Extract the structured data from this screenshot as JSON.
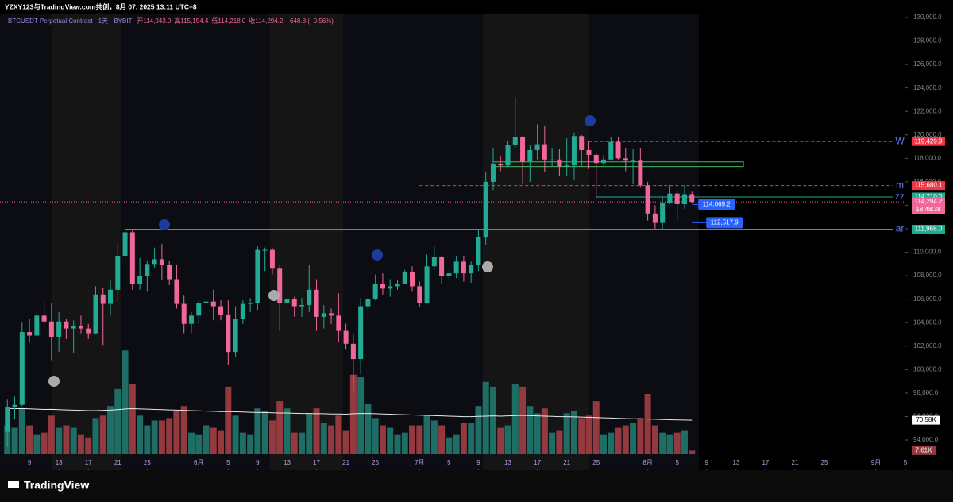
{
  "chart_data": {
    "type": "candlestick",
    "caption": "YZXY123与TradingView.com共创，8月 07, 2025 13:11 UTC+8",
    "title": "BTCUSDT Perpetual Contract · 1天 · BYBIT",
    "ohlc_legend": [
      "开114,943.0",
      "高115,154.4",
      "低114,218.0",
      "收114,294.2",
      "−648.8 (−0.56%)"
    ],
    "brand": "TradingView",
    "up_color": "#22ab94",
    "down_color": "#f0679a",
    "volume_up_color": "#1f6e66",
    "volume_down_color": "#93393f",
    "x": [
      "2025-05-06",
      "2025-05-07",
      "2025-05-08",
      "2025-05-09",
      "2025-05-10",
      "2025-05-11",
      "2025-05-12",
      "2025-05-13",
      "2025-05-14",
      "2025-05-15",
      "2025-05-16",
      "2025-05-17",
      "2025-05-18",
      "2025-05-19",
      "2025-05-20",
      "2025-05-21",
      "2025-05-22",
      "2025-05-23",
      "2025-05-24",
      "2025-05-25",
      "2025-05-26",
      "2025-05-27",
      "2025-05-28",
      "2025-05-29",
      "2025-05-30",
      "2025-05-31",
      "2025-06-01",
      "2025-06-02",
      "2025-06-03",
      "2025-06-04",
      "2025-06-05",
      "2025-06-06",
      "2025-06-07",
      "2025-06-08",
      "2025-06-09",
      "2025-06-10",
      "2025-06-11",
      "2025-06-12",
      "2025-06-13",
      "2025-06-14",
      "2025-06-15",
      "2025-06-16",
      "2025-06-17",
      "2025-06-18",
      "2025-06-19",
      "2025-06-20",
      "2025-06-21",
      "2025-06-22",
      "2025-06-23",
      "2025-06-24",
      "2025-06-25",
      "2025-06-26",
      "2025-06-27",
      "2025-06-28",
      "2025-06-29",
      "2025-06-30",
      "2025-07-01",
      "2025-07-02",
      "2025-07-03",
      "2025-07-04",
      "2025-07-05",
      "2025-07-06",
      "2025-07-07",
      "2025-07-08",
      "2025-07-09",
      "2025-07-10",
      "2025-07-11",
      "2025-07-12",
      "2025-07-13",
      "2025-07-14",
      "2025-07-15",
      "2025-07-16",
      "2025-07-17",
      "2025-07-18",
      "2025-07-19",
      "2025-07-20",
      "2025-07-21",
      "2025-07-22",
      "2025-07-23",
      "2025-07-24",
      "2025-07-25",
      "2025-07-26",
      "2025-07-27",
      "2025-07-28",
      "2025-07-29",
      "2025-07-30",
      "2025-07-31",
      "2025-08-01",
      "2025-08-02",
      "2025-08-03",
      "2025-08-04",
      "2025-08-05",
      "2025-08-06",
      "2025-08-07"
    ],
    "open": [
      94700,
      96800,
      97000,
      103200,
      102900,
      104600,
      104100,
      102800,
      104100,
      103500,
      103700,
      103500,
      103100,
      106400,
      105600,
      106800,
      109700,
      111700,
      107300,
      108000,
      109000,
      109400,
      108900,
      107700,
      105600,
      103900,
      104600,
      105700,
      105800,
      105400,
      104700,
      101500,
      104300,
      105600,
      105700,
      110200,
      110200,
      108600,
      105700,
      106000,
      105400,
      105500,
      106800,
      104500,
      104800,
      104600,
      103300,
      102200,
      100900,
      105400,
      106000,
      107300,
      106900,
      107100,
      107300,
      108300,
      107100,
      105700,
      108800,
      109600,
      108000,
      108200,
      109200,
      108200,
      108900,
      111300,
      116000,
      117500,
      117400,
      119100,
      119800,
      117700,
      118700,
      119200,
      117900,
      117900,
      117300,
      117400,
      119900,
      118700,
      118300,
      117600,
      117900,
      119400,
      118000,
      117800,
      117800,
      115700,
      113300,
      112500,
      114200,
      115000,
      114100,
      114943.0
    ],
    "high": [
      97500,
      97700,
      104000,
      104300,
      104900,
      105800,
      105700,
      104900,
      104300,
      104200,
      104600,
      103900,
      107100,
      107000,
      107700,
      110800,
      111900,
      111900,
      109500,
      109300,
      110400,
      110700,
      109300,
      108900,
      106300,
      104900,
      105900,
      105900,
      106800,
      105900,
      105900,
      105400,
      105900,
      106100,
      110500,
      110400,
      110400,
      108900,
      106200,
      106200,
      106100,
      108900,
      107700,
      105500,
      105200,
      106500,
      103900,
      103000,
      106100,
      106300,
      108100,
      108200,
      107700,
      107600,
      108500,
      108800,
      107500,
      109800,
      110500,
      109700,
      108500,
      109700,
      109700,
      109200,
      111900,
      116800,
      118900,
      118200,
      119500,
      123200,
      119900,
      119100,
      120900,
      120800,
      118900,
      118800,
      119700,
      120200,
      120000,
      119500,
      118500,
      118300,
      119800,
      119800,
      118900,
      118800,
      118900,
      116000,
      114000,
      114700,
      115700,
      115200,
      115700,
      115154.4
    ],
    "low": [
      93400,
      95800,
      96900,
      102300,
      102800,
      103700,
      100800,
      101500,
      102600,
      101400,
      103100,
      102600,
      103000,
      102100,
      104600,
      105800,
      109200,
      106800,
      106800,
      106700,
      108700,
      107600,
      107200,
      105200,
      103100,
      103100,
      103900,
      103700,
      104200,
      104200,
      100400,
      101100,
      103900,
      104900,
      105100,
      108400,
      108100,
      103300,
      102800,
      104500,
      104500,
      104900,
      103300,
      103500,
      103900,
      102400,
      101700,
      98200,
      99600,
      104700,
      105900,
      106400,
      106200,
      106800,
      107300,
      106700,
      105300,
      105600,
      108500,
      107300,
      107700,
      107800,
      107500,
      107400,
      108400,
      110600,
      115300,
      116900,
      117300,
      118900,
      115800,
      116000,
      117900,
      116800,
      117300,
      116500,
      116500,
      116200,
      117300,
      117100,
      114700,
      117400,
      117800,
      117900,
      116900,
      115800,
      115500,
      112700,
      112000,
      111900,
      114100,
      112700,
      113700,
      114218.0
    ],
    "close": [
      96800,
      97000,
      103200,
      102900,
      104600,
      104100,
      102800,
      104100,
      103500,
      103700,
      103500,
      103100,
      106400,
      105600,
      106800,
      109700,
      111700,
      107300,
      108000,
      109000,
      109400,
      108900,
      107700,
      105600,
      103900,
      104600,
      105700,
      105800,
      105400,
      104700,
      101500,
      104300,
      105600,
      105700,
      110200,
      110200,
      108600,
      105700,
      106000,
      105400,
      105500,
      106800,
      104500,
      104800,
      104600,
      103300,
      102200,
      100900,
      105400,
      106000,
      107300,
      106900,
      107100,
      107300,
      108300,
      107100,
      105700,
      108800,
      109600,
      108000,
      108200,
      109200,
      108200,
      108900,
      111300,
      116000,
      117500,
      117400,
      119100,
      119800,
      117700,
      118700,
      119200,
      117900,
      117900,
      117300,
      117400,
      119900,
      118700,
      118300,
      117600,
      117900,
      119400,
      118000,
      117800,
      117800,
      115700,
      113300,
      112500,
      114200,
      115000,
      114100,
      114943,
      114294.2
    ],
    "volume": [
      60000,
      55000,
      95000,
      60000,
      40000,
      45000,
      80000,
      55000,
      60000,
      55000,
      40000,
      35000,
      75000,
      80000,
      100000,
      135000,
      215000,
      145000,
      80000,
      60000,
      70000,
      70000,
      75000,
      90000,
      100000,
      45000,
      40000,
      60000,
      55000,
      50000,
      140000,
      80000,
      45000,
      40000,
      95000,
      90000,
      70000,
      110000,
      95000,
      45000,
      45000,
      85000,
      95000,
      65000,
      60000,
      80000,
      50000,
      165000,
      160000,
      105000,
      75000,
      60000,
      55000,
      40000,
      45000,
      60000,
      60000,
      80000,
      70000,
      60000,
      35000,
      40000,
      65000,
      65000,
      100000,
      150000,
      140000,
      55000,
      60000,
      145000,
      140000,
      100000,
      85000,
      95000,
      45000,
      50000,
      85000,
      90000,
      75000,
      80000,
      110000,
      40000,
      45000,
      55000,
      60000,
      65000,
      75000,
      125000,
      60000,
      45000,
      40000,
      45000,
      50000,
      7610
    ],
    "volume_ma": [
      95000,
      94500,
      94800,
      94200,
      93500,
      93000,
      93200,
      92500,
      92000,
      91500,
      91000,
      90500,
      90500,
      91000,
      91500,
      92500,
      94000,
      94500,
      94000,
      93500,
      93000,
      92500,
      92000,
      91500,
      91000,
      90500,
      90000,
      89500,
      89000,
      88500,
      88500,
      88000,
      87500,
      87000,
      86500,
      86500,
      86000,
      85500,
      85500,
      85000,
      84500,
      84500,
      84000,
      84000,
      83500,
      83500,
      83000,
      84000,
      84500,
      84500,
      84000,
      83500,
      83000,
      82500,
      82000,
      81500,
      81000,
      80500,
      80000,
      79500,
      79000,
      78500,
      78000,
      78000,
      78500,
      79000,
      79500,
      79000,
      79500,
      80000,
      80500,
      80000,
      79500,
      79000,
      78500,
      78000,
      78000,
      77500,
      77000,
      76500,
      76000,
      75500,
      75000,
      74500,
      74000,
      73500,
      73500,
      73000,
      72500,
      72000,
      71500,
      71200,
      70900,
      70580
    ],
    "volume_ma_label": "70.58K",
    "volume_label": "7.61K",
    "volume_ylim": [
      0,
      250000
    ],
    "xlim": [
      "2025-05-05",
      "2025-09-05"
    ],
    "xticks": [
      {
        "value": "2025-05-09",
        "label": "9"
      },
      {
        "value": "2025-05-13",
        "label": "13"
      },
      {
        "value": "2025-05-17",
        "label": "17"
      },
      {
        "value": "2025-05-21",
        "label": "21"
      },
      {
        "value": "2025-05-25",
        "label": "25"
      },
      {
        "value": "2025-06-01",
        "label": "6月"
      },
      {
        "value": "2025-06-05",
        "label": "5"
      },
      {
        "value": "2025-06-09",
        "label": "9"
      },
      {
        "value": "2025-06-13",
        "label": "13"
      },
      {
        "value": "2025-06-17",
        "label": "17"
      },
      {
        "value": "2025-06-21",
        "label": "21"
      },
      {
        "value": "2025-06-25",
        "label": "25"
      },
      {
        "value": "2025-07-01",
        "label": "7月"
      },
      {
        "value": "2025-07-05",
        "label": "5"
      },
      {
        "value": "2025-07-09",
        "label": "9"
      },
      {
        "value": "2025-07-13",
        "label": "13"
      },
      {
        "value": "2025-07-17",
        "label": "17"
      },
      {
        "value": "2025-07-21",
        "label": "21"
      },
      {
        "value": "2025-07-25",
        "label": "25"
      },
      {
        "value": "2025-08-01",
        "label": "8月"
      },
      {
        "value": "2025-08-05",
        "label": "5"
      },
      {
        "value": "2025-08-09",
        "label": "9"
      },
      {
        "value": "2025-08-13",
        "label": "13"
      },
      {
        "value": "2025-08-17",
        "label": "17"
      },
      {
        "value": "2025-08-21",
        "label": "21"
      },
      {
        "value": "2025-08-25",
        "label": "25"
      },
      {
        "value": "2025-09-01",
        "label": "9月"
      },
      {
        "value": "2025-09-05",
        "label": "5"
      }
    ],
    "ylim": [
      93000,
      131000
    ],
    "yticks": [
      {
        "value": 94000,
        "label": "94,000.0"
      },
      {
        "value": 96000,
        "label": "96,000.0"
      },
      {
        "value": 98000,
        "label": "98,000.0"
      },
      {
        "value": 100000,
        "label": "100,000.0"
      },
      {
        "value": 102000,
        "label": "102,000.0"
      },
      {
        "value": 104000,
        "label": "104,000.0"
      },
      {
        "value": 106000,
        "label": "106,000.0"
      },
      {
        "value": 108000,
        "label": "108,000.0"
      },
      {
        "value": 110000,
        "label": "110,000.0"
      },
      {
        "value": 112000,
        "label": "112,000.0"
      },
      {
        "value": 114000,
        "label": "114,000.0"
      },
      {
        "value": 116000,
        "label": "116,000.0"
      },
      {
        "value": 118000,
        "label": "118,000.0"
      },
      {
        "value": 120000,
        "label": "120,000.0"
      },
      {
        "value": 122000,
        "label": "122,000.0"
      },
      {
        "value": 124000,
        "label": "124,000.0"
      },
      {
        "value": 126000,
        "label": "126,000.0"
      },
      {
        "value": 128000,
        "label": "128,000.0"
      },
      {
        "value": 130000,
        "label": "130,000.0"
      }
    ],
    "levels": [
      {
        "name": "W",
        "value": 119429.9,
        "value_label": "119,429.9",
        "color": "#f23645",
        "style": "dashed",
        "start": "2025-07-24"
      },
      {
        "name": "m",
        "value": 115680.1,
        "value_label": "115,680.1",
        "color": "#f23645",
        "style": "dashed",
        "start": "2025-07-01"
      },
      {
        "name": "zz",
        "value": 114710.0,
        "value_label": "114,710.0",
        "color": "#22ab94",
        "style": "solid",
        "start": "2025-07-25"
      },
      {
        "name": "ar",
        "value": 111968.0,
        "value_label": "111,968.0",
        "color": "#22ab94",
        "style": "solid",
        "start": "2025-05-22"
      }
    ],
    "last": {
      "value": 114294.2,
      "label": "114,294.2",
      "countdown": "18:48:38",
      "color": "#f0679a"
    },
    "price_tags": [
      {
        "value": 114069.2,
        "label": "114,069.2"
      },
      {
        "value": 112517.9,
        "label": "112,517.9"
      }
    ],
    "zone": {
      "top": 117700,
      "bottom": 117300,
      "start": "2025-07-11",
      "end": "2025-08-14",
      "color": "#3fbf5a"
    }
  }
}
